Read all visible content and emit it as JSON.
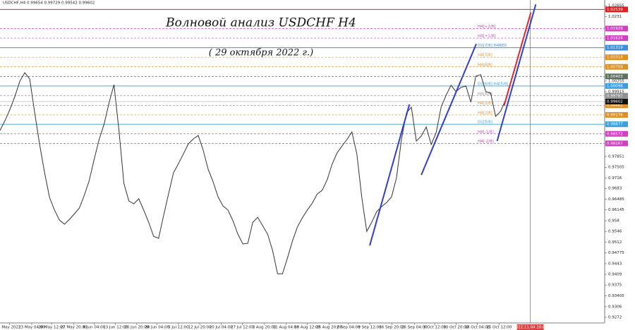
{
  "chart_data": {
    "type": "line",
    "header": "USDCHF,H4  0.99654 0.99729 0.99542 0.99602",
    "title": "Волновой анализ USDCHF H4",
    "subtitle": "( 29 октября 2022 г.)",
    "ylim": [
      0.9254,
      1.0284
    ],
    "xlim": [
      0,
      122
    ],
    "yticks": [
      1.02655,
      1.0231,
      1.01964,
      1.00255,
      0.99915,
      0.97851,
      0.97505,
      0.9716,
      0.9683,
      0.96485,
      0.96145,
      0.958,
      0.9546,
      0.9512,
      0.94775,
      0.9443,
      0.9409,
      0.9375,
      0.93405,
      0.9306,
      0.9272
    ],
    "xticks": [
      {
        "value": 1.9,
        "label": "5 May 2022"
      },
      {
        "value": 6.4,
        "label": "13 May 04:00"
      },
      {
        "value": 10.4,
        "label": "20 May 12:00"
      },
      {
        "value": 14.9,
        "label": "27 May 20:00"
      },
      {
        "value": 19,
        "label": "6 Jun 04:00"
      },
      {
        "value": 23.3,
        "label": "13 Jun 12:00"
      },
      {
        "value": 27.6,
        "label": "20 Jun 20:00"
      },
      {
        "value": 31.7,
        "label": "28 Jun 04:00"
      },
      {
        "value": 36,
        "label": "5 Jul 12:00"
      },
      {
        "value": 40.3,
        "label": "12 Jul 20:00"
      },
      {
        "value": 44.6,
        "label": "20 Jul 04:00"
      },
      {
        "value": 48.9,
        "label": "27 Jul 12:00"
      },
      {
        "value": 53.3,
        "label": "3 Aug 20:00"
      },
      {
        "value": 57.7,
        "label": "11 Aug 04:00"
      },
      {
        "value": 62,
        "label": "18 Aug 12:00"
      },
      {
        "value": 66.4,
        "label": "25 Aug 20:00"
      },
      {
        "value": 70.3,
        "label": "2 Sep 04:00"
      },
      {
        "value": 74.6,
        "label": "9 Sep 12:00"
      },
      {
        "value": 79.1,
        "label": "16 Sep 20:00"
      },
      {
        "value": 83.6,
        "label": "26 Sep 04:00"
      },
      {
        "value": 87.7,
        "label": "3 Oct 12:00"
      },
      {
        "value": 92,
        "label": "10 Oct 20:00"
      },
      {
        "value": 96.3,
        "label": "18 Oct 04:00"
      },
      {
        "value": 100.7,
        "label": "25 Oct 12:00"
      }
    ],
    "marker_line": {
      "value": 107,
      "label": "2022.11.04 20:00",
      "color": "#e04040"
    },
    "series": [
      {
        "name": "USDCHF",
        "color": "#333333",
        "values": [
          0.9868,
          0.9899,
          0.9935,
          0.9976,
          1.0025,
          1.0052,
          1.0032,
          0.9924,
          0.9823,
          0.9733,
          0.9654,
          0.9614,
          0.9582,
          0.9569,
          0.9584,
          0.9602,
          0.962,
          0.9661,
          0.9708,
          0.9776,
          0.9839,
          0.9888,
          0.9956,
          1.0014,
          0.9868,
          0.9699,
          0.9643,
          0.9634,
          0.965,
          0.9614,
          0.9575,
          0.953,
          0.9524,
          0.9596,
          0.9665,
          0.9733,
          0.9762,
          0.9793,
          0.9825,
          0.9841,
          0.9852,
          0.9805,
          0.9744,
          0.9704,
          0.9656,
          0.9627,
          0.9614,
          0.958,
          0.9537,
          0.9506,
          0.9508,
          0.9575,
          0.9591,
          0.9564,
          0.9537,
          0.9485,
          0.9411,
          0.9411,
          0.9461,
          0.9515,
          0.956,
          0.9589,
          0.9614,
          0.9636,
          0.9665,
          0.9677,
          0.971,
          0.976,
          0.9796,
          0.9818,
          0.9839,
          0.9863,
          0.9793,
          0.9654,
          0.9546,
          0.9575,
          0.9609,
          0.9625,
          0.9638,
          0.9656,
          0.9717,
          0.9839,
          0.9924,
          0.9942,
          0.9834,
          0.985,
          0.9879,
          0.9823,
          0.9861,
          0.9942,
          0.998,
          1.0012,
          0.9992,
          1.0005,
          1.001,
          0.9958,
          1.0041,
          1.0046,
          0.9992,
          0.9987,
          0.9913,
          0.9929,
          0.9965
        ]
      }
    ],
    "current_price": {
      "value": 0.99602,
      "color": "#111111"
    },
    "levels": [
      {
        "value": 1.02539,
        "color": "#e02020",
        "dashed": false
      },
      {
        "value": 1.01929,
        "color": "#d040c0",
        "dashed": true,
        "label": "H4[+2/8]"
      },
      {
        "value": 1.01624,
        "color": "#d040c0",
        "dashed": true,
        "label": "H4[+1/8]"
      },
      {
        "value": 1.01319,
        "color": "#3a8ee0",
        "dashed": false,
        "label": "D1[7/8] H4RES"
      },
      {
        "value": 1.01014,
        "color": "#e09020",
        "dashed": true,
        "label": "H4[7/8]"
      },
      {
        "value": 1.00709,
        "color": "#e09020",
        "dashed": true,
        "label": "H4[6/8]"
      },
      {
        "value": 1.00403,
        "color": "#607060",
        "dashed": true
      },
      {
        "value": 1.00098,
        "color": "#3a9ee0",
        "dashed": false,
        "label": "D1[6/8] H4[5/8]"
      },
      {
        "value": 0.99787,
        "color": "#909090",
        "dashed": true,
        "label": "H4[4/8]"
      },
      {
        "value": 0.99481,
        "color": "#e09020",
        "dashed": true,
        "label": "H4[3/8]"
      },
      {
        "value": 0.99176,
        "color": "#e09020",
        "dashed": true,
        "label": "H4[2/8]"
      },
      {
        "value": 0.98877,
        "color": "#3a9ee0",
        "dashed": false,
        "label": "D1[5/8]"
      },
      {
        "value": 0.98572,
        "color": "#d040c0",
        "dashed": true,
        "label": "H4[-1/8]"
      },
      {
        "value": 0.98267,
        "color": "#d040c0",
        "dashed": true,
        "label": "H4[-2/8]"
      }
    ],
    "trendlines": [
      {
        "color": "#3040c8",
        "x": [
          74.6,
          82.6
        ],
        "y": [
          0.9501,
          0.9951
        ]
      },
      {
        "color": "#3040c8",
        "x": [
          85,
          96.1
        ],
        "y": [
          0.9726,
          1.0144
        ]
      },
      {
        "color": "#3040c8",
        "x": [
          100.3,
          108.1
        ],
        "y": [
          0.9834,
          1.027
        ]
      },
      {
        "color": "#e02828",
        "x": [
          101.7,
          107.1
        ],
        "y": [
          0.9947,
          1.0244
        ]
      }
    ]
  }
}
